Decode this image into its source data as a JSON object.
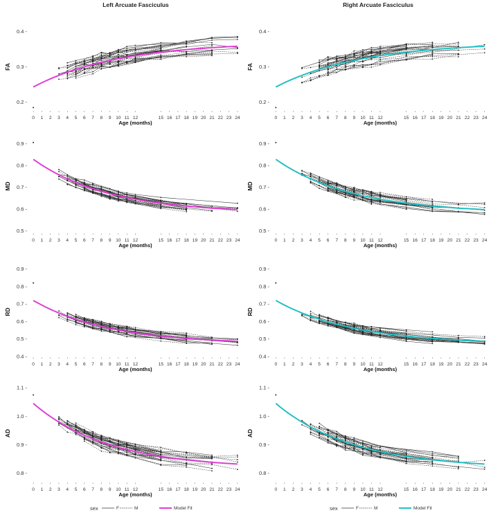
{
  "chart_data": {
    "type": "line",
    "panels_description": "4 rows (metrics) x 2 columns (hemispheres) of longitudinal spaghetti plots with model fit",
    "columns": [
      {
        "title": "Left Arcuate Fasciculus",
        "fit_color": "#dd3fd3"
      },
      {
        "title": "Right Arcuate Fasciculus",
        "fit_color": "#22c0c3"
      }
    ],
    "rows": [
      {
        "ylabel": "FA",
        "ylim": [
          0.17,
          0.43
        ],
        "yticks": [
          0.2,
          0.3,
          0.4
        ],
        "ytick_labels": [
          "0.2 -",
          "0.3 -",
          "0.4 -"
        ],
        "fit": {
          "x0": 0,
          "x1": 24,
          "y0": 0.243,
          "y1": 0.358,
          "curvature": 0.8
        },
        "spread": 0.024,
        "outlier": {
          "x": 0,
          "y": 0.185
        }
      },
      {
        "ylabel": "MD",
        "ylim": [
          0.48,
          0.93
        ],
        "yticks": [
          0.5,
          0.6,
          0.7,
          0.8,
          0.9
        ],
        "ytick_labels": [
          "0.5 -",
          "0.6 -",
          "0.7 -",
          "0.8 -",
          "0.9 -"
        ],
        "fit": {
          "x0": 0,
          "x1": 24,
          "y0": 0.828,
          "y1": 0.598,
          "curvature": 0.9
        },
        "spread": 0.022,
        "outlier": {
          "x": 0,
          "y": 0.905
        }
      },
      {
        "ylabel": "RD",
        "ylim": [
          0.38,
          0.93
        ],
        "yticks": [
          0.4,
          0.5,
          0.6,
          0.7,
          0.8,
          0.9
        ],
        "ytick_labels": [
          "0.4 -",
          "0.5 -",
          "0.6 -",
          "0.7 -",
          "0.8 -",
          "0.9 -"
        ],
        "fit": {
          "x0": 0,
          "x1": 24,
          "y0": 0.72,
          "y1": 0.487,
          "curvature": 0.9
        },
        "spread": 0.025,
        "outlier": {
          "x": 0,
          "y": 0.82
        }
      },
      {
        "ylabel": "AD",
        "ylim": [
          0.76,
          1.12
        ],
        "yticks": [
          0.8,
          0.9,
          1.0,
          1.1
        ],
        "ytick_labels": [
          "0.8 -",
          "0.9 -",
          "1.0 -",
          "1.1 -"
        ],
        "fit": {
          "x0": 0,
          "x1": 24,
          "y0": 1.045,
          "y1": 0.832,
          "curvature": 0.9
        },
        "spread": 0.025,
        "outlier": {
          "x": 0,
          "y": 1.075
        }
      }
    ],
    "x_ticks": [
      "0",
      "1",
      "2",
      "3",
      "4",
      "5",
      "6",
      "7",
      "8",
      "9",
      "10",
      "11",
      "12",
      "15",
      "16",
      "17",
      "18",
      "19",
      "20",
      "21",
      "22",
      "23",
      "24"
    ],
    "x_tick_values": [
      0,
      1,
      2,
      3,
      4,
      5,
      6,
      7,
      8,
      9,
      10,
      11,
      12,
      15,
      16,
      17,
      18,
      19,
      20,
      21,
      22,
      23,
      24
    ],
    "xlabel": "Age (months)",
    "xlim": [
      -0.5,
      24.5
    ],
    "subject_count": 30,
    "legend": {
      "title": "sex",
      "entries": [
        {
          "label": "F",
          "linetype": "solid"
        },
        {
          "label": "M",
          "linetype": "dashed"
        },
        {
          "label": "Model Fit",
          "linetype": "fit"
        }
      ]
    }
  }
}
